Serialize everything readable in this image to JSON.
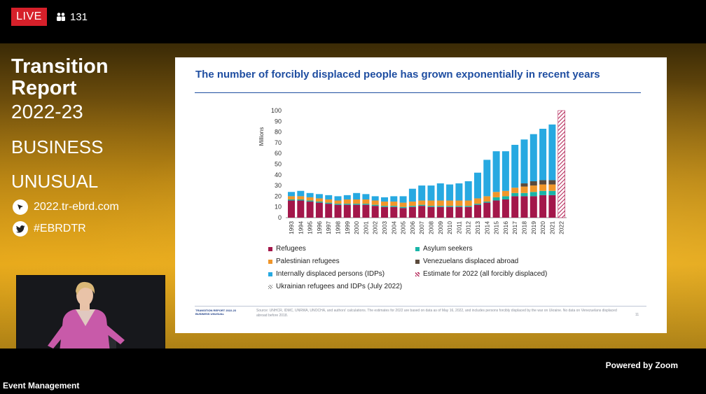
{
  "top_bar": {
    "live_label": "LIVE",
    "viewer_count": "131"
  },
  "brand": {
    "title_line1": "Transition",
    "title_line2": "Report",
    "years": "2022-23",
    "tag_line1": "BUSINESS",
    "tag_line2": "UNUSUAL",
    "website": "2022.tr-ebrd.com",
    "hashtag": "#EBRDTR"
  },
  "slide": {
    "title": "The number of forcibly displaced people has grown exponentially in recent years",
    "footer_brand_line1": "TRANSITION REPORT 2022-23",
    "footer_brand_line2": "BUSINESS UNUSUAL",
    "footer_source": "Source: UNHCR, IDMC, UNRWA, UNOCHA, and authors' calculations. The estimates for 2022 are based on data as of May 16, 2022, and includes persons forcibly displaced by the war on Ukraine. No data on Venezuelans displaced abroad before 2018.",
    "page_number": "11"
  },
  "colors": {
    "refugees": "#a3174a",
    "asylum": "#19b5a8",
    "palestinian": "#f0962a",
    "venezuelans": "#5b4a3c",
    "idps": "#27a9e1",
    "estimate": "#b5295a",
    "title": "#1f4ea1"
  },
  "chart_data": {
    "type": "bar",
    "stacked": true,
    "ylabel": "Millions",
    "ylim": [
      0,
      100
    ],
    "yticks": [
      0,
      10,
      20,
      30,
      40,
      50,
      60,
      70,
      80,
      90,
      100
    ],
    "categories": [
      "1993",
      "1994",
      "1995",
      "1996",
      "1997",
      "1998",
      "1999",
      "2000",
      "2001",
      "2002",
      "2003",
      "2004",
      "2005",
      "2006",
      "2007",
      "2008",
      "2009",
      "2010",
      "2011",
      "2012",
      "2013",
      "2014",
      "2015",
      "2016",
      "2017",
      "2018",
      "2019",
      "2020",
      "2021",
      "2022"
    ],
    "series": [
      {
        "key": "refugees",
        "name": "Refugees",
        "values": [
          16,
          16,
          15,
          14,
          13,
          12,
          12,
          12,
          12,
          11,
          10,
          10,
          9,
          10,
          11,
          10,
          10,
          10,
          10,
          10,
          12,
          14,
          16,
          17,
          20,
          20,
          20,
          21,
          21,
          0
        ]
      },
      {
        "key": "asylum",
        "name": "Asylum seekers",
        "values": [
          1,
          1,
          1,
          1,
          1,
          1,
          1,
          1,
          1,
          1,
          1,
          1,
          1,
          1,
          1,
          1,
          1,
          1,
          1,
          1,
          1,
          1,
          3,
          3,
          3,
          3,
          4,
          4,
          4,
          0
        ]
      },
      {
        "key": "palestinian",
        "name": "Palestinian refugees",
        "values": [
          3,
          3,
          3,
          3,
          3,
          3,
          4,
          4,
          4,
          4,
          4,
          4,
          4,
          4,
          4,
          5,
          5,
          5,
          5,
          5,
          5,
          5,
          5,
          5,
          5,
          6,
          6,
          6,
          6,
          0
        ]
      },
      {
        "key": "venezuelans",
        "name": "Venezuelans displaced abroad",
        "values": [
          0,
          0,
          0,
          0,
          0,
          0,
          0,
          0,
          0,
          0,
          0,
          0,
          0,
          0,
          0,
          0,
          0,
          0,
          0,
          0,
          0,
          0,
          0,
          0,
          0,
          3,
          4,
          4,
          4,
          0
        ]
      },
      {
        "key": "idps",
        "name": "Internally displaced persons (IDPs)",
        "values": [
          4,
          5,
          4,
          4,
          4,
          4,
          4,
          6,
          5,
          4,
          4,
          5,
          6,
          12,
          14,
          14,
          16,
          15,
          16,
          18,
          24,
          34,
          38,
          37,
          40,
          41,
          44,
          48,
          52,
          0
        ]
      },
      {
        "key": "estimate",
        "name": "Estimate for 2022 (all forcibly displaced)",
        "values": [
          0,
          0,
          0,
          0,
          0,
          0,
          0,
          0,
          0,
          0,
          0,
          0,
          0,
          0,
          0,
          0,
          0,
          0,
          0,
          0,
          0,
          0,
          0,
          0,
          0,
          0,
          0,
          0,
          0,
          100
        ]
      }
    ],
    "legend": [
      {
        "key": "refugees",
        "label": "Refugees"
      },
      {
        "key": "asylum",
        "label": "Asylum seekers"
      },
      {
        "key": "palestinian",
        "label": "Palestinian refugees"
      },
      {
        "key": "venezuelans",
        "label": "Venezuelans displaced abroad"
      },
      {
        "key": "idps",
        "label": "Internally displaced persons (IDPs)"
      },
      {
        "key": "estimate",
        "label": "Estimate for 2022 (all forcibly displaced)"
      },
      {
        "key": "ukraine",
        "label": "Ukrainian refugees and IDPs (July 2022)"
      }
    ],
    "legend_position": "bottom"
  },
  "zoom_label": "Powered by Zoom",
  "event_label": "Event Management"
}
